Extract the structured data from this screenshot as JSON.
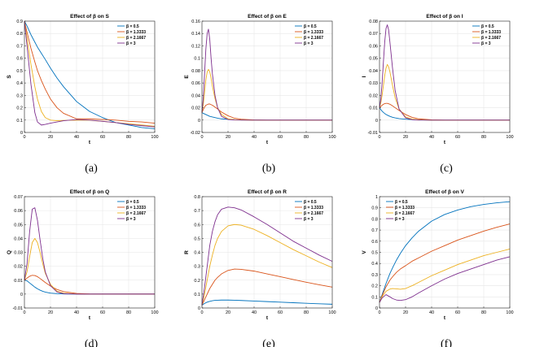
{
  "colors": {
    "series": [
      "#0072BD",
      "#D95319",
      "#EDB120",
      "#7E2F8E"
    ],
    "grid": "#e6e6e6",
    "axis": "#262626"
  },
  "chart_data": [
    {
      "type": "line",
      "panel_label": "(a)",
      "title": "Effect of β on S",
      "xlabel": "t",
      "ylabel": "S",
      "xlim": [
        0,
        100
      ],
      "ylim": [
        0,
        0.9
      ],
      "xticks": [
        0,
        20,
        40,
        60,
        80,
        100
      ],
      "yticks": [
        0,
        0.1,
        0.2,
        0.3,
        0.4,
        0.5,
        0.6,
        0.7,
        0.8,
        0.9
      ],
      "yticklabels": [
        "0",
        "0.1",
        "0.2",
        "0.3",
        "0.4",
        "0.5",
        "0.6",
        "0.7",
        "0.8",
        "0.9"
      ],
      "legend_position": "top-right",
      "x": [
        0,
        2,
        5,
        8,
        10,
        13,
        16,
        20,
        25,
        30,
        40,
        50,
        60,
        70,
        80,
        90,
        100
      ],
      "series": [
        {
          "name": "β = 0.5",
          "values": [
            0.9,
            0.86,
            0.79,
            0.73,
            0.69,
            0.64,
            0.59,
            0.52,
            0.44,
            0.37,
            0.25,
            0.17,
            0.12,
            0.08,
            0.06,
            0.04,
            0.03
          ]
        },
        {
          "name": "β = 1.3333",
          "values": [
            0.9,
            0.81,
            0.68,
            0.57,
            0.5,
            0.42,
            0.35,
            0.27,
            0.2,
            0.155,
            0.11,
            0.11,
            0.105,
            0.1,
            0.09,
            0.085,
            0.075
          ]
        },
        {
          "name": "β = 2.1667",
          "values": [
            0.9,
            0.76,
            0.55,
            0.37,
            0.27,
            0.17,
            0.12,
            0.1,
            0.095,
            0.097,
            0.1,
            0.098,
            0.09,
            0.08,
            0.07,
            0.06,
            0.05
          ]
        },
        {
          "name": "β = 3",
          "values": [
            0.9,
            0.7,
            0.39,
            0.16,
            0.085,
            0.06,
            0.065,
            0.075,
            0.085,
            0.095,
            0.105,
            0.1,
            0.09,
            0.08,
            0.065,
            0.055,
            0.045
          ]
        }
      ]
    },
    {
      "type": "line",
      "panel_label": "(b)",
      "title": "Effect of β on E",
      "xlabel": "t",
      "ylabel": "E",
      "xlim": [
        0,
        100
      ],
      "ylim": [
        -0.02,
        0.16
      ],
      "xticks": [
        0,
        20,
        40,
        60,
        80,
        100
      ],
      "yticks": [
        -0.02,
        0,
        0.02,
        0.04,
        0.06,
        0.08,
        0.1,
        0.12,
        0.14,
        0.16
      ],
      "yticklabels": [
        "-0.02",
        "0",
        "0.02",
        "0.04",
        "0.06",
        "0.08",
        "0.1",
        "0.12",
        "0.14",
        "0.16"
      ],
      "legend_position": "top-right",
      "x": [
        0,
        1,
        2,
        3,
        4,
        5,
        6,
        7,
        8,
        10,
        12,
        15,
        20,
        25,
        30,
        40,
        50,
        60,
        80,
        100
      ],
      "series": [
        {
          "name": "β = 0.5",
          "values": [
            0.012,
            0.011,
            0.01,
            0.009,
            0.008,
            0.007,
            0.006,
            0.0055,
            0.005,
            0.004,
            0.003,
            0.002,
            0.0012,
            0.0006,
            0.0003,
            0.0001,
            0,
            0,
            0,
            0
          ]
        },
        {
          "name": "β = 1.3333",
          "values": [
            0.012,
            0.017,
            0.021,
            0.024,
            0.025,
            0.026,
            0.026,
            0.025,
            0.024,
            0.021,
            0.018,
            0.013,
            0.007,
            0.003,
            0.0015,
            0.0003,
            0,
            0,
            0,
            0
          ]
        },
        {
          "name": "β = 2.1667",
          "values": [
            0.012,
            0.025,
            0.045,
            0.065,
            0.078,
            0.082,
            0.078,
            0.068,
            0.055,
            0.035,
            0.02,
            0.009,
            0.002,
            0.0007,
            0.0002,
            0,
            0,
            0,
            0,
            0
          ]
        },
        {
          "name": "β = 3",
          "values": [
            0.012,
            0.035,
            0.075,
            0.115,
            0.14,
            0.147,
            0.13,
            0.1,
            0.075,
            0.04,
            0.02,
            0.006,
            0.001,
            0.0003,
            0,
            0,
            0,
            0,
            0,
            0
          ]
        }
      ]
    },
    {
      "type": "line",
      "panel_label": "(c)",
      "title": "Effect of β on I",
      "xlabel": "t",
      "ylabel": "I",
      "xlim": [
        0,
        100
      ],
      "ylim": [
        -0.01,
        0.08
      ],
      "xticks": [
        0,
        20,
        40,
        60,
        80,
        100
      ],
      "yticks": [
        -0.01,
        0,
        0.01,
        0.02,
        0.03,
        0.04,
        0.05,
        0.06,
        0.07,
        0.08
      ],
      "yticklabels": [
        "-0.01",
        "0",
        "0.01",
        "0.02",
        "0.03",
        "0.04",
        "0.05",
        "0.06",
        "0.07",
        "0.08"
      ],
      "legend_position": "top-right",
      "x": [
        0,
        1,
        2,
        3,
        4,
        5,
        6,
        7,
        8,
        10,
        12,
        15,
        20,
        25,
        30,
        40,
        50,
        60,
        80,
        100
      ],
      "series": [
        {
          "name": "β = 0.5",
          "values": [
            0.01,
            0.0085,
            0.0072,
            0.0062,
            0.0053,
            0.0046,
            0.004,
            0.0035,
            0.003,
            0.0023,
            0.0018,
            0.0012,
            0.0007,
            0.0004,
            0.0002,
            0,
            0,
            0,
            0,
            0
          ]
        },
        {
          "name": "β = 1.3333",
          "values": [
            0.01,
            0.011,
            0.012,
            0.0128,
            0.0133,
            0.0135,
            0.0135,
            0.0132,
            0.0128,
            0.0115,
            0.01,
            0.0078,
            0.0045,
            0.0022,
            0.001,
            0.0002,
            0,
            0,
            0,
            0
          ]
        },
        {
          "name": "β = 2.1667",
          "values": [
            0.01,
            0.014,
            0.02,
            0.028,
            0.036,
            0.042,
            0.045,
            0.043,
            0.039,
            0.028,
            0.018,
            0.009,
            0.0025,
            0.0008,
            0.0002,
            0,
            0,
            0,
            0,
            0
          ]
        },
        {
          "name": "β = 3",
          "values": [
            0.01,
            0.017,
            0.03,
            0.047,
            0.063,
            0.074,
            0.077,
            0.073,
            0.063,
            0.042,
            0.024,
            0.009,
            0.0018,
            0.0004,
            0,
            0,
            0,
            0,
            0,
            0
          ]
        }
      ]
    },
    {
      "type": "line",
      "panel_label": "(d)",
      "title": "Effect of β on Q",
      "xlabel": "t",
      "ylabel": "Q",
      "xlim": [
        0,
        100
      ],
      "ylim": [
        -0.01,
        0.07
      ],
      "xticks": [
        0,
        20,
        40,
        60,
        80,
        100
      ],
      "yticks": [
        -0.01,
        0,
        0.01,
        0.02,
        0.03,
        0.04,
        0.05,
        0.06,
        0.07
      ],
      "yticklabels": [
        "-0.01",
        "0",
        "0.01",
        "0.02",
        "0.03",
        "0.04",
        "0.05",
        "0.06",
        "0.07"
      ],
      "legend_position": "top-right",
      "x": [
        0,
        2,
        4,
        6,
        8,
        10,
        12,
        14,
        16,
        20,
        25,
        30,
        40,
        50,
        60,
        80,
        100
      ],
      "series": [
        {
          "name": "β = 0.5",
          "values": [
            0.01,
            0.0095,
            0.008,
            0.0065,
            0.005,
            0.0038,
            0.0028,
            0.002,
            0.0014,
            0.0007,
            0.0003,
            0.0001,
            0,
            0,
            0,
            0,
            0
          ]
        },
        {
          "name": "β = 1.3333",
          "values": [
            0.01,
            0.0115,
            0.0128,
            0.0135,
            0.0133,
            0.0125,
            0.0112,
            0.0098,
            0.0083,
            0.0058,
            0.0033,
            0.0018,
            0.0005,
            0.0001,
            0,
            0,
            0
          ]
        },
        {
          "name": "β = 2.1667",
          "values": [
            0.01,
            0.016,
            0.027,
            0.037,
            0.04,
            0.037,
            0.03,
            0.022,
            0.015,
            0.007,
            0.002,
            0.0006,
            0.0001,
            0,
            0,
            0,
            0
          ]
        },
        {
          "name": "β = 3",
          "values": [
            0.01,
            0.022,
            0.045,
            0.061,
            0.062,
            0.053,
            0.039,
            0.026,
            0.016,
            0.006,
            0.0015,
            0.0003,
            0,
            0,
            0,
            0,
            0
          ]
        }
      ]
    },
    {
      "type": "line",
      "panel_label": "(e)",
      "title": "Effect of β on R",
      "xlabel": "t",
      "ylabel": "R",
      "xlim": [
        0,
        100
      ],
      "ylim": [
        0,
        0.8
      ],
      "xticks": [
        0,
        20,
        40,
        60,
        80,
        100
      ],
      "yticks": [
        0,
        0.1,
        0.2,
        0.3,
        0.4,
        0.5,
        0.6,
        0.7,
        0.8
      ],
      "yticklabels": [
        "0",
        "0.1",
        "0.2",
        "0.3",
        "0.4",
        "0.5",
        "0.6",
        "0.7",
        "0.8"
      ],
      "legend_position": "top-right",
      "x": [
        0,
        2,
        4,
        6,
        8,
        10,
        12,
        15,
        20,
        25,
        30,
        40,
        50,
        60,
        70,
        80,
        90,
        100
      ],
      "series": [
        {
          "name": "β = 0.5",
          "values": [
            0.02,
            0.033,
            0.042,
            0.048,
            0.052,
            0.055,
            0.056,
            0.057,
            0.057,
            0.056,
            0.054,
            0.05,
            0.046,
            0.042,
            0.038,
            0.034,
            0.03,
            0.027
          ]
        },
        {
          "name": "β = 1.3333",
          "values": [
            0.02,
            0.06,
            0.1,
            0.14,
            0.17,
            0.2,
            0.22,
            0.245,
            0.27,
            0.28,
            0.278,
            0.265,
            0.245,
            0.225,
            0.205,
            0.185,
            0.167,
            0.15
          ]
        },
        {
          "name": "β = 2.1667",
          "values": [
            0.02,
            0.1,
            0.2,
            0.3,
            0.38,
            0.45,
            0.5,
            0.55,
            0.59,
            0.6,
            0.595,
            0.565,
            0.52,
            0.47,
            0.42,
            0.375,
            0.33,
            0.29
          ]
        },
        {
          "name": "β = 3",
          "values": [
            0.02,
            0.15,
            0.3,
            0.45,
            0.55,
            0.62,
            0.67,
            0.71,
            0.725,
            0.72,
            0.705,
            0.655,
            0.6,
            0.54,
            0.48,
            0.43,
            0.38,
            0.335
          ]
        }
      ]
    },
    {
      "type": "line",
      "panel_label": "(f)",
      "title": "Effect of β on V",
      "xlabel": "t",
      "ylabel": "V",
      "xlim": [
        0,
        100
      ],
      "ylim": [
        0,
        1
      ],
      "xticks": [
        0,
        20,
        40,
        60,
        80,
        100
      ],
      "yticks": [
        0,
        0.1,
        0.2,
        0.3,
        0.4,
        0.5,
        0.6,
        0.7,
        0.8,
        0.9,
        1
      ],
      "yticklabels": [
        "0",
        "0.1",
        "0.2",
        "0.3",
        "0.4",
        "0.5",
        "0.6",
        "0.7",
        "0.8",
        "0.9",
        "1"
      ],
      "legend_position": "top-left",
      "x": [
        0,
        2,
        5,
        8,
        10,
        13,
        16,
        20,
        25,
        30,
        40,
        50,
        60,
        70,
        80,
        90,
        100
      ],
      "series": [
        {
          "name": "β = 0.5",
          "values": [
            0.05,
            0.12,
            0.22,
            0.31,
            0.36,
            0.43,
            0.49,
            0.56,
            0.63,
            0.69,
            0.78,
            0.84,
            0.88,
            0.91,
            0.93,
            0.945,
            0.955
          ]
        },
        {
          "name": "β = 1.3333",
          "values": [
            0.05,
            0.11,
            0.19,
            0.25,
            0.28,
            0.32,
            0.35,
            0.38,
            0.42,
            0.45,
            0.51,
            0.56,
            0.61,
            0.65,
            0.69,
            0.725,
            0.755
          ]
        },
        {
          "name": "β = 2.1667",
          "values": [
            0.05,
            0.1,
            0.15,
            0.17,
            0.175,
            0.172,
            0.168,
            0.175,
            0.2,
            0.23,
            0.29,
            0.34,
            0.39,
            0.43,
            0.47,
            0.5,
            0.53
          ]
        },
        {
          "name": "β = 3",
          "values": [
            0.05,
            0.09,
            0.12,
            0.1,
            0.085,
            0.072,
            0.068,
            0.075,
            0.1,
            0.135,
            0.2,
            0.26,
            0.31,
            0.35,
            0.39,
            0.43,
            0.46
          ]
        }
      ]
    }
  ]
}
